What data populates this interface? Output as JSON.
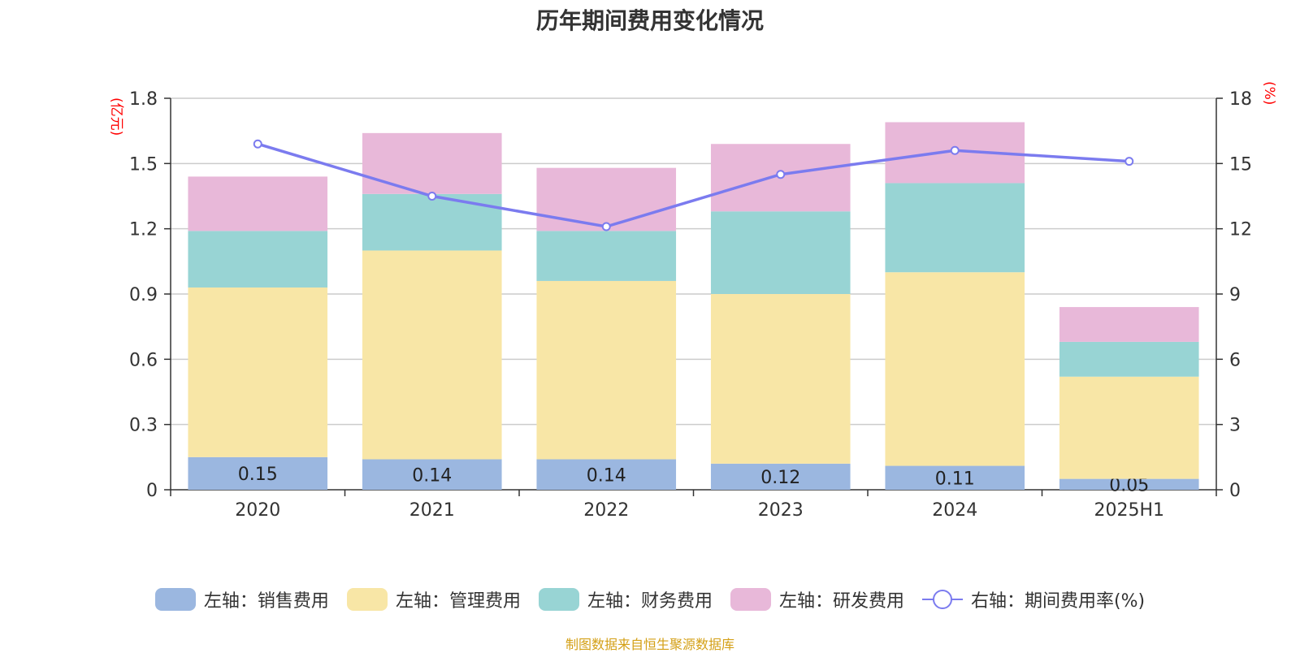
{
  "title": "历年期间费用变化情况",
  "footer": "制图数据来自恒生聚源数据库",
  "chart_data": {
    "type": "bar",
    "stacked": true,
    "title": "历年期间费用变化情况",
    "categories": [
      "2020",
      "2021",
      "2022",
      "2023",
      "2024",
      "2025H1"
    ],
    "left_axis": {
      "unit": "(亿元)",
      "ylim": [
        0,
        1.8
      ],
      "ticks": [
        "0",
        "0.3",
        "0.6",
        "0.9",
        "1.2",
        "1.5",
        "1.8"
      ]
    },
    "right_axis": {
      "unit": "(%)",
      "ylim": [
        0,
        18
      ],
      "ticks": [
        "0",
        "3",
        "6",
        "9",
        "12",
        "15",
        "18"
      ]
    },
    "series": [
      {
        "name": "左轴：销售费用",
        "type": "bar",
        "axis": "left",
        "color": "#9bb7e0",
        "values": [
          0.15,
          0.14,
          0.14,
          0.12,
          0.11,
          0.05
        ],
        "labels": [
          "0.15",
          "0.14",
          "0.14",
          "0.12",
          "0.11",
          "0.05"
        ]
      },
      {
        "name": "左轴：管理费用",
        "type": "bar",
        "axis": "left",
        "color": "#f8e6a6",
        "values": [
          0.78,
          0.96,
          0.82,
          0.78,
          0.89,
          0.47
        ]
      },
      {
        "name": "左轴：财务费用",
        "type": "bar",
        "axis": "left",
        "color": "#98d4d4",
        "values": [
          0.26,
          0.26,
          0.23,
          0.38,
          0.41,
          0.16
        ]
      },
      {
        "name": "左轴：研发费用",
        "type": "bar",
        "axis": "left",
        "color": "#e8b8d9",
        "values": [
          0.25,
          0.28,
          0.29,
          0.31,
          0.28,
          0.16
        ]
      },
      {
        "name": "右轴：期间费用率(%)",
        "type": "line",
        "axis": "right",
        "color": "#7b7bef",
        "values": [
          15.9,
          13.5,
          12.1,
          14.5,
          15.6,
          15.1
        ]
      }
    ],
    "grid": true,
    "legend_position": "bottom"
  }
}
